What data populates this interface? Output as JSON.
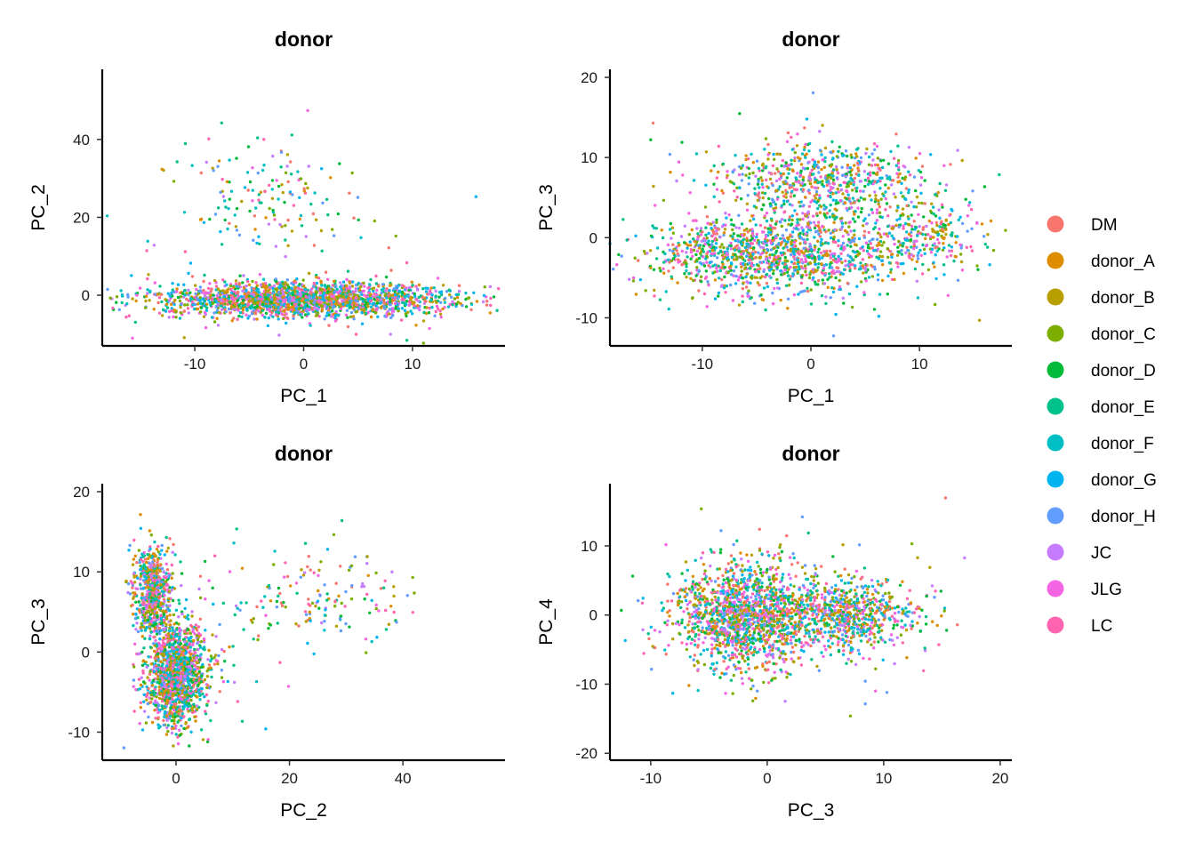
{
  "legend": {
    "items": [
      {
        "label": "DM",
        "color": "#F8766D"
      },
      {
        "label": "donor_A",
        "color": "#DE8C00"
      },
      {
        "label": "donor_B",
        "color": "#B79F00"
      },
      {
        "label": "donor_C",
        "color": "#7CAE00"
      },
      {
        "label": "donor_D",
        "color": "#00BA38"
      },
      {
        "label": "donor_E",
        "color": "#00C08B"
      },
      {
        "label": "donor_F",
        "color": "#00BFC4"
      },
      {
        "label": "donor_G",
        "color": "#00B4F0"
      },
      {
        "label": "donor_H",
        "color": "#619CFF"
      },
      {
        "label": "JC",
        "color": "#C77CFF"
      },
      {
        "label": "JLG",
        "color": "#F564E3"
      },
      {
        "label": "LC",
        "color": "#FF64B0"
      }
    ]
  },
  "chart_data": [
    {
      "type": "scatter",
      "title": "donor",
      "xlabel": "PC_1",
      "ylabel": "PC_2",
      "xlim": [
        -18.5,
        18.5
      ],
      "ylim": [
        -13,
        58
      ],
      "xticks": [
        -10,
        0,
        10
      ],
      "yticks": [
        0,
        20,
        40
      ],
      "clusters": [
        {
          "cx": 0,
          "cy": -1,
          "sx": 7,
          "sy": 2.2,
          "w": 0.9
        },
        {
          "cx": -3,
          "cy": 25,
          "sx": 4,
          "sy": 7,
          "w": 0.06
        },
        {
          "cx": 0,
          "cy": 0,
          "sx": 9,
          "sy": 15,
          "w": 0.04
        }
      ]
    },
    {
      "type": "scatter",
      "title": "donor",
      "xlabel": "PC_1",
      "ylabel": "PC_3",
      "xlim": [
        -18.5,
        18.5
      ],
      "ylim": [
        -13.5,
        21
      ],
      "xticks": [
        -10,
        0,
        10
      ],
      "yticks": [
        -10,
        0,
        10,
        20
      ],
      "clusters": [
        {
          "cx": -3,
          "cy": -2,
          "sx": 6,
          "sy": 2.5,
          "w": 0.55
        },
        {
          "cx": 1,
          "cy": 7,
          "sx": 5,
          "sy": 2.5,
          "w": 0.3
        },
        {
          "cx": 10,
          "cy": 0,
          "sx": 3,
          "sy": 2,
          "w": 0.1
        },
        {
          "cx": 0,
          "cy": 0,
          "sx": 9,
          "sy": 7,
          "w": 0.05
        }
      ]
    },
    {
      "type": "scatter",
      "title": "donor",
      "xlabel": "PC_2",
      "ylabel": "PC_3",
      "xlim": [
        -13,
        58
      ],
      "ylim": [
        -13.5,
        21
      ],
      "xticks": [
        0,
        20,
        40
      ],
      "yticks": [
        -10,
        0,
        10,
        20
      ],
      "clusters": [
        {
          "cx": -4,
          "cy": 7,
          "sx": 1.8,
          "sy": 3,
          "w": 0.3
        },
        {
          "cx": 0,
          "cy": -3,
          "sx": 2.5,
          "sy": 3,
          "w": 0.6
        },
        {
          "cx": 25,
          "cy": 7,
          "sx": 8,
          "sy": 3,
          "w": 0.06
        },
        {
          "cx": 5,
          "cy": 0,
          "sx": 6,
          "sy": 6,
          "w": 0.04
        }
      ]
    },
    {
      "type": "scatter",
      "title": "donor",
      "xlabel": "PC_3",
      "ylabel": "PC_4",
      "xlim": [
        -13.5,
        21
      ],
      "ylim": [
        -21,
        19
      ],
      "xticks": [
        -10,
        0,
        10,
        20
      ],
      "yticks": [
        -20,
        -10,
        0,
        10
      ],
      "clusters": [
        {
          "cx": -2,
          "cy": 0,
          "sx": 3,
          "sy": 4,
          "w": 0.65
        },
        {
          "cx": 7,
          "cy": 0,
          "sx": 3,
          "sy": 2.5,
          "w": 0.3
        },
        {
          "cx": 2,
          "cy": 0,
          "sx": 7,
          "sy": 7,
          "w": 0.05
        }
      ]
    }
  ]
}
